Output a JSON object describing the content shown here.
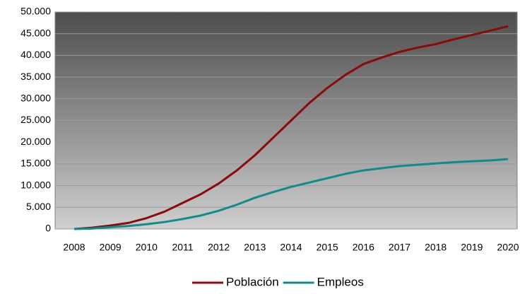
{
  "chart_data": {
    "type": "line",
    "categories": [
      "2008",
      null,
      "2009",
      null,
      "2010",
      null,
      "2011",
      null,
      "2012",
      null,
      "2013",
      null,
      "2014",
      null,
      "2015",
      null,
      "2016",
      null,
      "2017",
      null,
      "2018",
      null,
      "2019",
      null,
      "2020"
    ],
    "series": [
      {
        "name": "Población",
        "color": "#8b0a0a",
        "values": [
          0,
          300,
          800,
          1400,
          2500,
          4000,
          6000,
          8000,
          10500,
          13500,
          17000,
          21000,
          25000,
          29000,
          32500,
          35500,
          38000,
          39500,
          40800,
          41800,
          42600,
          43700,
          44700,
          45700,
          46700
        ]
      },
      {
        "name": "Empleos",
        "color": "#0f8c8c",
        "values": [
          0,
          100,
          400,
          700,
          1100,
          1600,
          2300,
          3100,
          4200,
          5600,
          7200,
          8500,
          9700,
          10700,
          11700,
          12700,
          13500,
          14000,
          14500,
          14800,
          15100,
          15400,
          15600,
          15800,
          16100
        ]
      }
    ],
    "ylim": [
      0,
      50000
    ],
    "yticks": [
      0,
      {
        "value": 5000,
        "label": "5.000"
      },
      {
        "value": 10000,
        "label": "10.000"
      },
      {
        "value": 15000,
        "label": "15.000"
      },
      {
        "value": 20000,
        "label": "20.000"
      },
      {
        "value": 25000,
        "label": "25.000"
      },
      {
        "value": 30000,
        "label": "30.000"
      },
      {
        "value": 35000,
        "label": "35.000"
      },
      {
        "value": 40000,
        "label": "40.000"
      },
      {
        "value": 45000,
        "label": "45.000"
      },
      {
        "value": 50000,
        "label": "50.000"
      }
    ],
    "grid": true,
    "legend": "bottom"
  }
}
